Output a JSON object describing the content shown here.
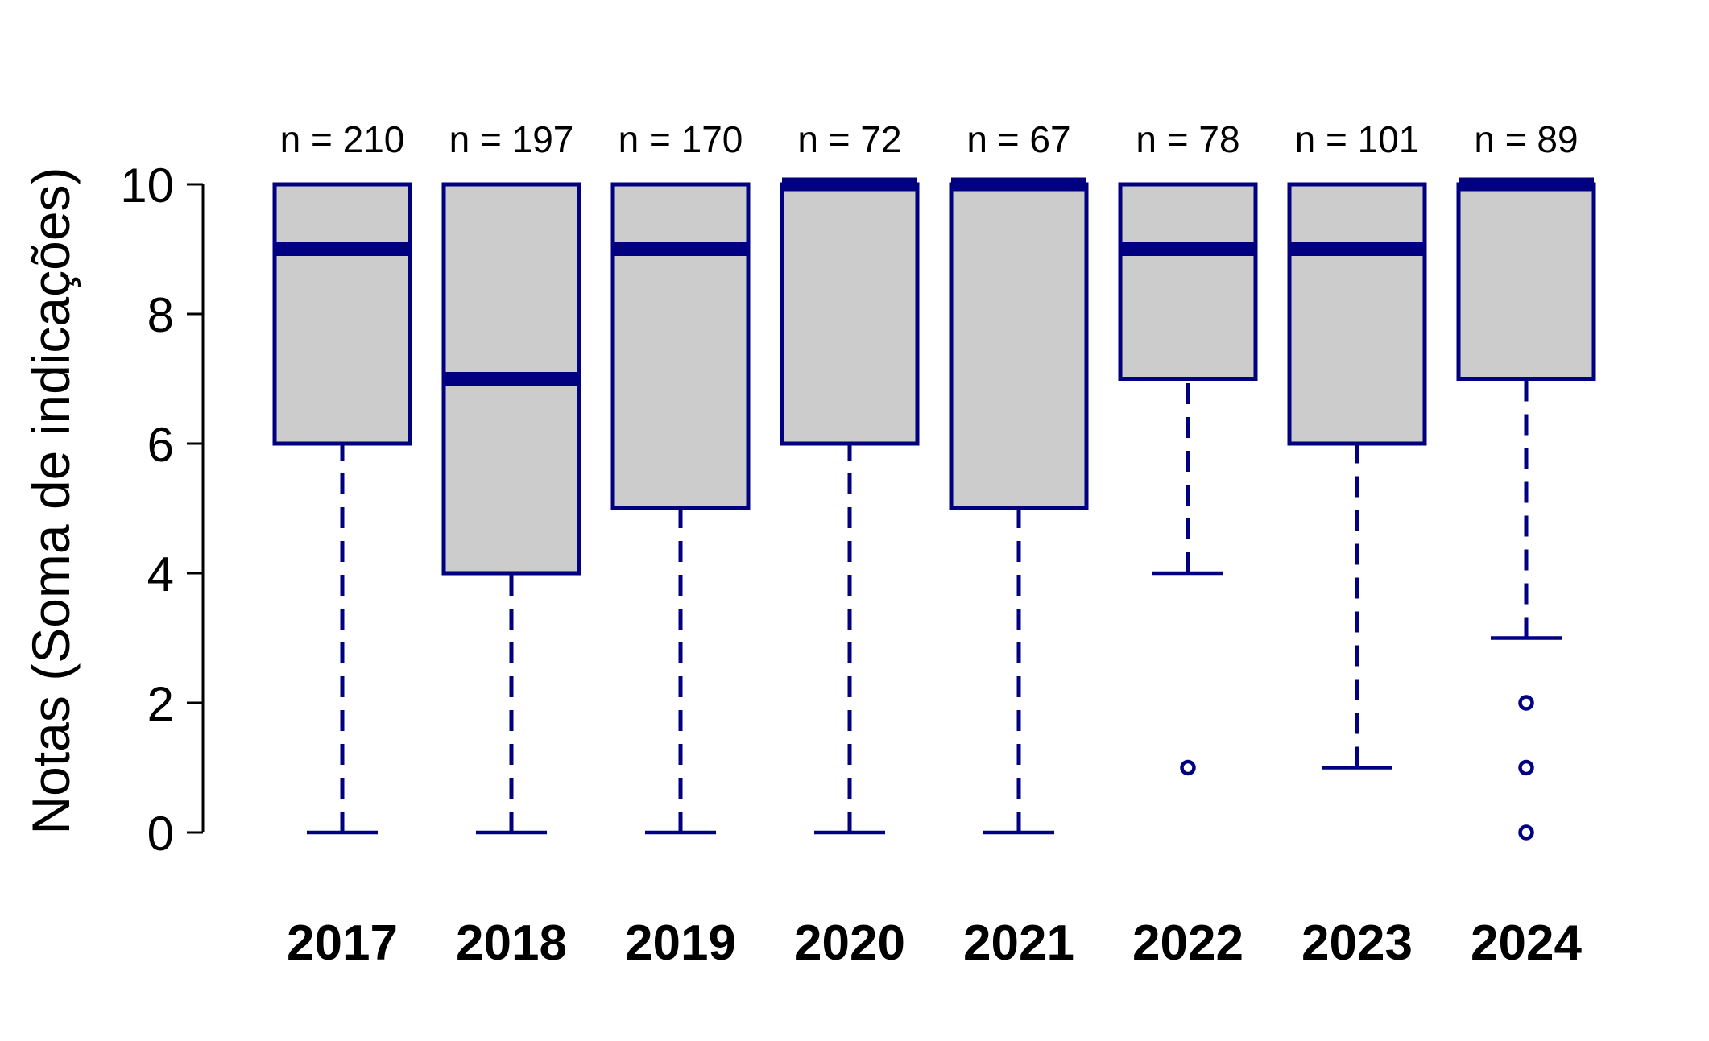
{
  "chart_data": {
    "type": "boxplot",
    "ylabel": "Notas (Soma de indicações)",
    "ylim": [
      0,
      10
    ],
    "yticks": [
      "0",
      "2",
      "4",
      "6",
      "8",
      "10"
    ],
    "categories": [
      "2017",
      "2018",
      "2019",
      "2020",
      "2021",
      "2022",
      "2023",
      "2024"
    ],
    "counts": [
      "n = 210",
      "n = 197",
      "n = 170",
      "n = 72",
      "n = 67",
      "n = 78",
      "n = 101",
      "n = 89"
    ],
    "boxes": [
      {
        "whisker_low": 0,
        "q1": 6,
        "median": 9,
        "q3": 10,
        "whisker_high": 10,
        "outliers": []
      },
      {
        "whisker_low": 0,
        "q1": 4,
        "median": 7,
        "q3": 10,
        "whisker_high": 10,
        "outliers": []
      },
      {
        "whisker_low": 0,
        "q1": 5,
        "median": 9,
        "q3": 10,
        "whisker_high": 10,
        "outliers": []
      },
      {
        "whisker_low": 0,
        "q1": 6,
        "median": 10,
        "q3": 10,
        "whisker_high": 10,
        "outliers": []
      },
      {
        "whisker_low": 0,
        "q1": 5,
        "median": 10,
        "q3": 10,
        "whisker_high": 10,
        "outliers": []
      },
      {
        "whisker_low": 4,
        "q1": 7,
        "median": 9,
        "q3": 10,
        "whisker_high": 10,
        "outliers": [
          1
        ]
      },
      {
        "whisker_low": 1,
        "q1": 6,
        "median": 9,
        "q3": 10,
        "whisker_high": 10,
        "outliers": []
      },
      {
        "whisker_low": 3,
        "q1": 7,
        "median": 10,
        "q3": 10,
        "whisker_high": 10,
        "outliers": [
          0,
          1,
          2
        ]
      }
    ],
    "colors": {
      "stroke": "#000080",
      "box_fill": "#cccccc",
      "text": "#000000"
    },
    "grid": false
  }
}
